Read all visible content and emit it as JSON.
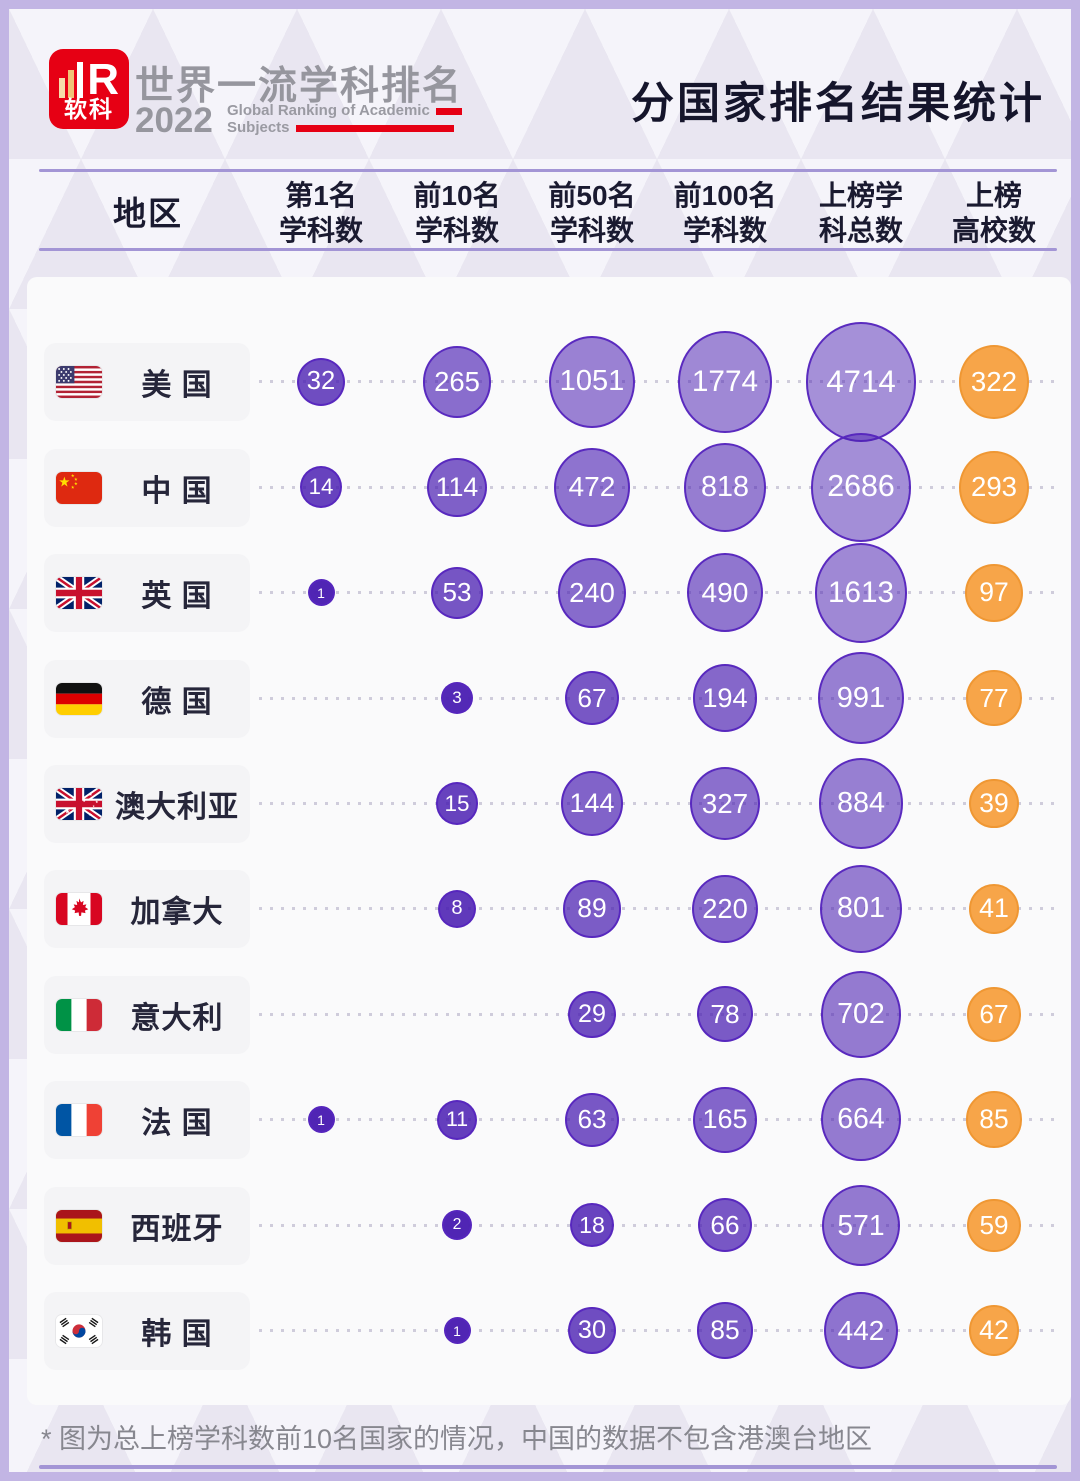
{
  "header": {
    "logo_badge_text": "软科",
    "logo_r": "R",
    "logo_title": "世界一流学科排名",
    "logo_year": "2022",
    "logo_subtitle_line1": "Global Ranking of Academic",
    "logo_subtitle_line2": "Subjects",
    "page_title": "分国家排名结果统计"
  },
  "table": {
    "region_header": "地区",
    "columns": [
      {
        "key": "top1",
        "line1": "第1名",
        "line2": "学科数"
      },
      {
        "key": "top10",
        "line1": "前10名",
        "line2": "学科数"
      },
      {
        "key": "top50",
        "line1": "前50名",
        "line2": "学科数"
      },
      {
        "key": "top100",
        "line1": "前100名",
        "line2": "学科数"
      },
      {
        "key": "total-subjects",
        "line1": "上榜学",
        "line2": "科总数"
      },
      {
        "key": "universities",
        "line1": "上榜",
        "line2": "高校数"
      }
    ],
    "rows": [
      {
        "country": "美 国",
        "flag": "us",
        "values": [
          32,
          265,
          1051,
          1774,
          4714,
          322
        ]
      },
      {
        "country": "中 国",
        "flag": "cn",
        "values": [
          14,
          114,
          472,
          818,
          2686,
          293
        ]
      },
      {
        "country": "英 国",
        "flag": "gb",
        "values": [
          1,
          53,
          240,
          490,
          1613,
          97
        ]
      },
      {
        "country": "德 国",
        "flag": "de",
        "values": [
          null,
          3,
          67,
          194,
          991,
          77
        ]
      },
      {
        "country": "澳大利亚",
        "flag": "au",
        "values": [
          null,
          15,
          144,
          327,
          884,
          39
        ]
      },
      {
        "country": "加拿大",
        "flag": "ca",
        "values": [
          null,
          8,
          89,
          220,
          801,
          41
        ]
      },
      {
        "country": "意大利",
        "flag": "it",
        "values": [
          null,
          null,
          29,
          78,
          702,
          67
        ]
      },
      {
        "country": "法 国",
        "flag": "fr",
        "values": [
          1,
          11,
          63,
          165,
          664,
          85
        ]
      },
      {
        "country": "西班牙",
        "flag": "es",
        "values": [
          null,
          2,
          18,
          66,
          571,
          59
        ]
      },
      {
        "country": "韩 国",
        "flag": "kr",
        "values": [
          null,
          1,
          30,
          85,
          442,
          42
        ]
      }
    ]
  },
  "footnote": "* 图为总上榜学科数前10名国家的情况，中国的数据不包含港澳台地区",
  "colors": {
    "bubble_purple": "#4A1EB2",
    "bubble_purple_border": "#5626BE",
    "bubble_orange": "#F7A549",
    "bubble_orange_border": "#EF9733",
    "accent_line": "#A395D5",
    "brand_red": "#E60014"
  },
  "chart_data": {
    "type": "table",
    "title": "分国家排名结果统计",
    "subtitle": "2022 世界一流学科排名 Global Ranking of Academic Subjects",
    "encoding": "bubble-size",
    "categories": [
      "美国",
      "中国",
      "英国",
      "德国",
      "澳大利亚",
      "加拿大",
      "意大利",
      "法国",
      "西班牙",
      "韩国"
    ],
    "series": [
      {
        "name": "第1名学科数",
        "values": [
          32,
          14,
          1,
          null,
          null,
          null,
          null,
          1,
          null,
          null
        ]
      },
      {
        "name": "前10名学科数",
        "values": [
          265,
          114,
          53,
          3,
          15,
          8,
          null,
          11,
          2,
          1
        ]
      },
      {
        "name": "前50名学科数",
        "values": [
          1051,
          472,
          240,
          67,
          144,
          89,
          29,
          63,
          18,
          30
        ]
      },
      {
        "name": "前100名学科数",
        "values": [
          1774,
          818,
          490,
          194,
          327,
          220,
          78,
          165,
          66,
          85
        ]
      },
      {
        "name": "上榜学科总数",
        "values": [
          4714,
          2686,
          1613,
          991,
          884,
          801,
          702,
          664,
          571,
          442
        ]
      },
      {
        "name": "上榜高校数",
        "values": [
          322,
          293,
          97,
          77,
          39,
          41,
          67,
          85,
          59,
          42
        ]
      }
    ],
    "footnote": "* 图为总上榜学科数前10名国家的情况，中国的数据不包含港澳台地区"
  }
}
